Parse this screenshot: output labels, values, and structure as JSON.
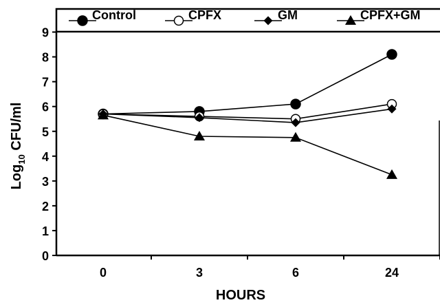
{
  "chart_data": {
    "type": "line",
    "title": "",
    "xlabel": "HOURS",
    "ylabel_main": "Log",
    "ylabel_sub": "10",
    "ylabel_rest": " CFU/ml",
    "x_categories": [
      "0",
      "3",
      "6",
      "24"
    ],
    "yticks": [
      "0",
      "1",
      "2",
      "3",
      "4",
      "5",
      "6",
      "7",
      "8",
      "9"
    ],
    "ylim": [
      0,
      9
    ],
    "grid": false,
    "legend_position": "top",
    "series": [
      {
        "name": "Control",
        "marker": "filled-circle",
        "values": [
          5.7,
          5.8,
          6.1,
          8.1
        ]
      },
      {
        "name": "CPFX",
        "marker": "open-circle",
        "values": [
          5.7,
          5.6,
          5.5,
          6.1
        ]
      },
      {
        "name": "GM",
        "marker": "filled-diamond",
        "values": [
          5.7,
          5.55,
          5.35,
          5.9
        ]
      },
      {
        "name": "CPFX+GM",
        "marker": "filled-triangle",
        "values": [
          5.65,
          4.8,
          4.75,
          3.25
        ]
      }
    ]
  }
}
